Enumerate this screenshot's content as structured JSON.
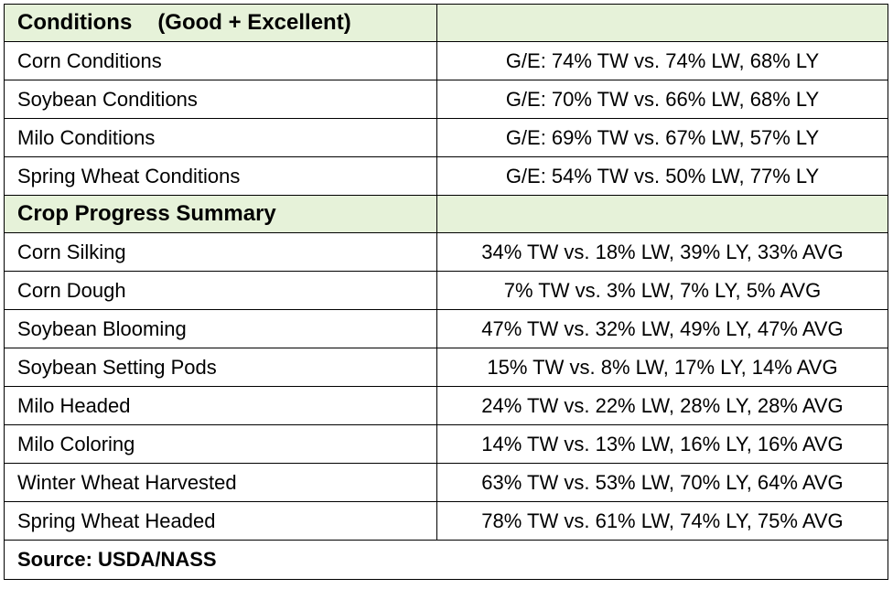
{
  "conditions_header": {
    "title": "Conditions",
    "subtitle": "(Good + Excellent)"
  },
  "conditions": [
    {
      "label": "Corn Conditions",
      "value": "G/E: 74% TW vs. 74% LW, 68% LY"
    },
    {
      "label": "Soybean Conditions",
      "value": "G/E: 70% TW vs. 66% LW, 68% LY"
    },
    {
      "label": "Milo Conditions",
      "value": "G/E: 69% TW vs. 67% LW, 57% LY"
    },
    {
      "label": "Spring Wheat Conditions",
      "value": "G/E: 54% TW vs. 50% LW, 77% LY"
    }
  ],
  "progress_header": {
    "title": "Crop Progress Summary"
  },
  "progress": [
    {
      "label": "Corn Silking",
      "value": "34% TW vs. 18% LW, 39% LY, 33% AVG"
    },
    {
      "label": "Corn Dough",
      "value": "7% TW vs. 3% LW, 7% LY, 5% AVG"
    },
    {
      "label": "Soybean Blooming",
      "value": "47% TW vs. 32% LW, 49% LY, 47% AVG"
    },
    {
      "label": "Soybean Setting Pods",
      "value": "15% TW vs. 8% LW, 17% LY, 14% AVG"
    },
    {
      "label": "Milo Headed",
      "value": "24% TW vs. 22% LW, 28% LY, 28% AVG"
    },
    {
      "label": "Milo Coloring",
      "value": "14% TW vs. 13% LW, 16% LY, 16% AVG"
    },
    {
      "label": "Winter Wheat Harvested",
      "value": "63% TW vs. 53% LW, 70% LY, 64% AVG"
    },
    {
      "label": "Spring Wheat Headed",
      "value": "78% TW vs. 61% LW, 74% LY, 75% AVG"
    }
  ],
  "source": "Source: USDA/NASS",
  "colors": {
    "header_fill": "#e6f2d9",
    "border": "#000000"
  }
}
